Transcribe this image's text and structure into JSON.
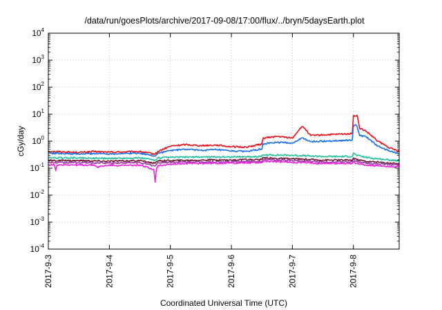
{
  "chart_data": {
    "type": "line",
    "title": "/data/run/goesPlots/archive/2017-09-08/17:00/flux/../bryn/5daysEarth.plot",
    "xlabel": "Coordinated Universal Time (UTC)",
    "ylabel": "cGy/day",
    "x_ticks": [
      "2017-9-3",
      "2017-9-4",
      "2017-9-5",
      "2017-9-6",
      "2017-9-7",
      "2017-9-8"
    ],
    "xlim": [
      0,
      5.75
    ],
    "y_scale": "log",
    "ylim": [
      0.0001,
      10000
    ],
    "y_ticks": [
      {
        "base": "10",
        "exp": "-4"
      },
      {
        "base": "10",
        "exp": "-3"
      },
      {
        "base": "10",
        "exp": "-2"
      },
      {
        "base": "10",
        "exp": "-1"
      },
      {
        "base": "10",
        "exp": "0"
      },
      {
        "base": "10",
        "exp": "1"
      },
      {
        "base": "10",
        "exp": "2"
      },
      {
        "base": "10",
        "exp": "3"
      },
      {
        "base": "10",
        "exp": "4"
      }
    ],
    "grid": true,
    "series": [
      {
        "color": "#e8101a",
        "x": [
          0,
          0.25,
          0.5,
          0.75,
          1.0,
          1.25,
          1.5,
          1.75,
          1.8,
          2.0,
          2.25,
          2.5,
          2.75,
          3.0,
          3.25,
          3.5,
          3.52,
          3.75,
          4.0,
          4.1,
          4.15,
          4.2,
          4.3,
          4.5,
          4.75,
          4.98,
          5.0,
          5.03,
          5.06,
          5.1,
          5.2,
          5.4,
          5.6,
          5.75
        ],
        "y": [
          0.42,
          0.4,
          0.38,
          0.41,
          0.39,
          0.4,
          0.41,
          0.33,
          0.42,
          0.65,
          0.75,
          0.68,
          0.72,
          0.62,
          0.6,
          0.78,
          1.3,
          1.5,
          1.3,
          2.5,
          3.4,
          3.0,
          1.6,
          1.7,
          1.8,
          1.9,
          9.0,
          8.5,
          9.2,
          3.0,
          2.4,
          1.0,
          0.55,
          0.42
        ]
      },
      {
        "color": "#1a6fe8",
        "x": [
          0,
          0.25,
          0.5,
          0.75,
          1.0,
          1.25,
          1.5,
          1.75,
          1.8,
          2.0,
          2.25,
          2.5,
          2.75,
          3.0,
          3.25,
          3.5,
          3.52,
          3.75,
          4.0,
          4.1,
          4.15,
          4.2,
          4.3,
          4.5,
          4.75,
          4.98,
          5.0,
          5.03,
          5.06,
          5.1,
          5.2,
          5.4,
          5.6,
          5.75
        ],
        "y": [
          0.36,
          0.35,
          0.33,
          0.35,
          0.34,
          0.35,
          0.36,
          0.28,
          0.36,
          0.45,
          0.5,
          0.46,
          0.48,
          0.43,
          0.42,
          0.5,
          0.8,
          0.9,
          0.85,
          1.1,
          1.3,
          1.2,
          0.95,
          1.0,
          1.05,
          1.1,
          3.8,
          4.0,
          3.5,
          1.6,
          1.5,
          0.65,
          0.42,
          0.35
        ]
      },
      {
        "color": "#1fbf9a",
        "x": [
          0,
          0.5,
          1.0,
          1.5,
          1.75,
          1.8,
          2.0,
          2.5,
          3.0,
          3.5,
          3.52,
          4.0,
          4.5,
          4.98,
          5.0,
          5.05,
          5.2,
          5.5,
          5.75
        ],
        "y": [
          0.24,
          0.24,
          0.23,
          0.24,
          0.2,
          0.24,
          0.25,
          0.26,
          0.26,
          0.27,
          0.31,
          0.3,
          0.27,
          0.27,
          0.36,
          0.3,
          0.25,
          0.21,
          0.19
        ]
      },
      {
        "color": "#6b1a2e",
        "x": [
          0,
          0.5,
          1.0,
          1.5,
          1.75,
          1.8,
          2.0,
          2.5,
          3.0,
          3.5,
          3.52,
          4.0,
          4.5,
          4.98,
          5.0,
          5.05,
          5.2,
          5.5,
          5.75
        ],
        "y": [
          0.19,
          0.19,
          0.18,
          0.19,
          0.15,
          0.19,
          0.19,
          0.2,
          0.2,
          0.21,
          0.24,
          0.22,
          0.2,
          0.2,
          0.24,
          0.21,
          0.18,
          0.16,
          0.15
        ]
      },
      {
        "color": "#9a3aa8",
        "x": [
          0,
          0.5,
          1.0,
          1.5,
          1.75,
          1.8,
          2.0,
          2.5,
          3.0,
          3.5,
          3.52,
          4.0,
          4.5,
          4.98,
          5.0,
          5.05,
          5.2,
          5.5,
          5.75
        ],
        "y": [
          0.16,
          0.16,
          0.155,
          0.16,
          0.12,
          0.16,
          0.165,
          0.17,
          0.17,
          0.18,
          0.21,
          0.19,
          0.17,
          0.17,
          0.21,
          0.18,
          0.155,
          0.14,
          0.13
        ]
      },
      {
        "color": "#f01ee0",
        "x": [
          0,
          0.1,
          0.12,
          0.14,
          0.25,
          0.5,
          0.75,
          0.8,
          1.0,
          1.25,
          1.5,
          1.73,
          1.75,
          1.77,
          1.8,
          2.0,
          2.25,
          2.5,
          3.0,
          3.5,
          3.52,
          4.0,
          4.5,
          4.98,
          5.0,
          5.05,
          5.2,
          5.5,
          5.75
        ],
        "y": [
          0.13,
          0.13,
          0.08,
          0.13,
          0.135,
          0.13,
          0.13,
          0.11,
          0.13,
          0.125,
          0.13,
          0.09,
          0.03,
          0.09,
          0.125,
          0.14,
          0.15,
          0.15,
          0.155,
          0.16,
          0.18,
          0.165,
          0.15,
          0.15,
          0.17,
          0.15,
          0.13,
          0.12,
          0.11
        ]
      }
    ]
  }
}
